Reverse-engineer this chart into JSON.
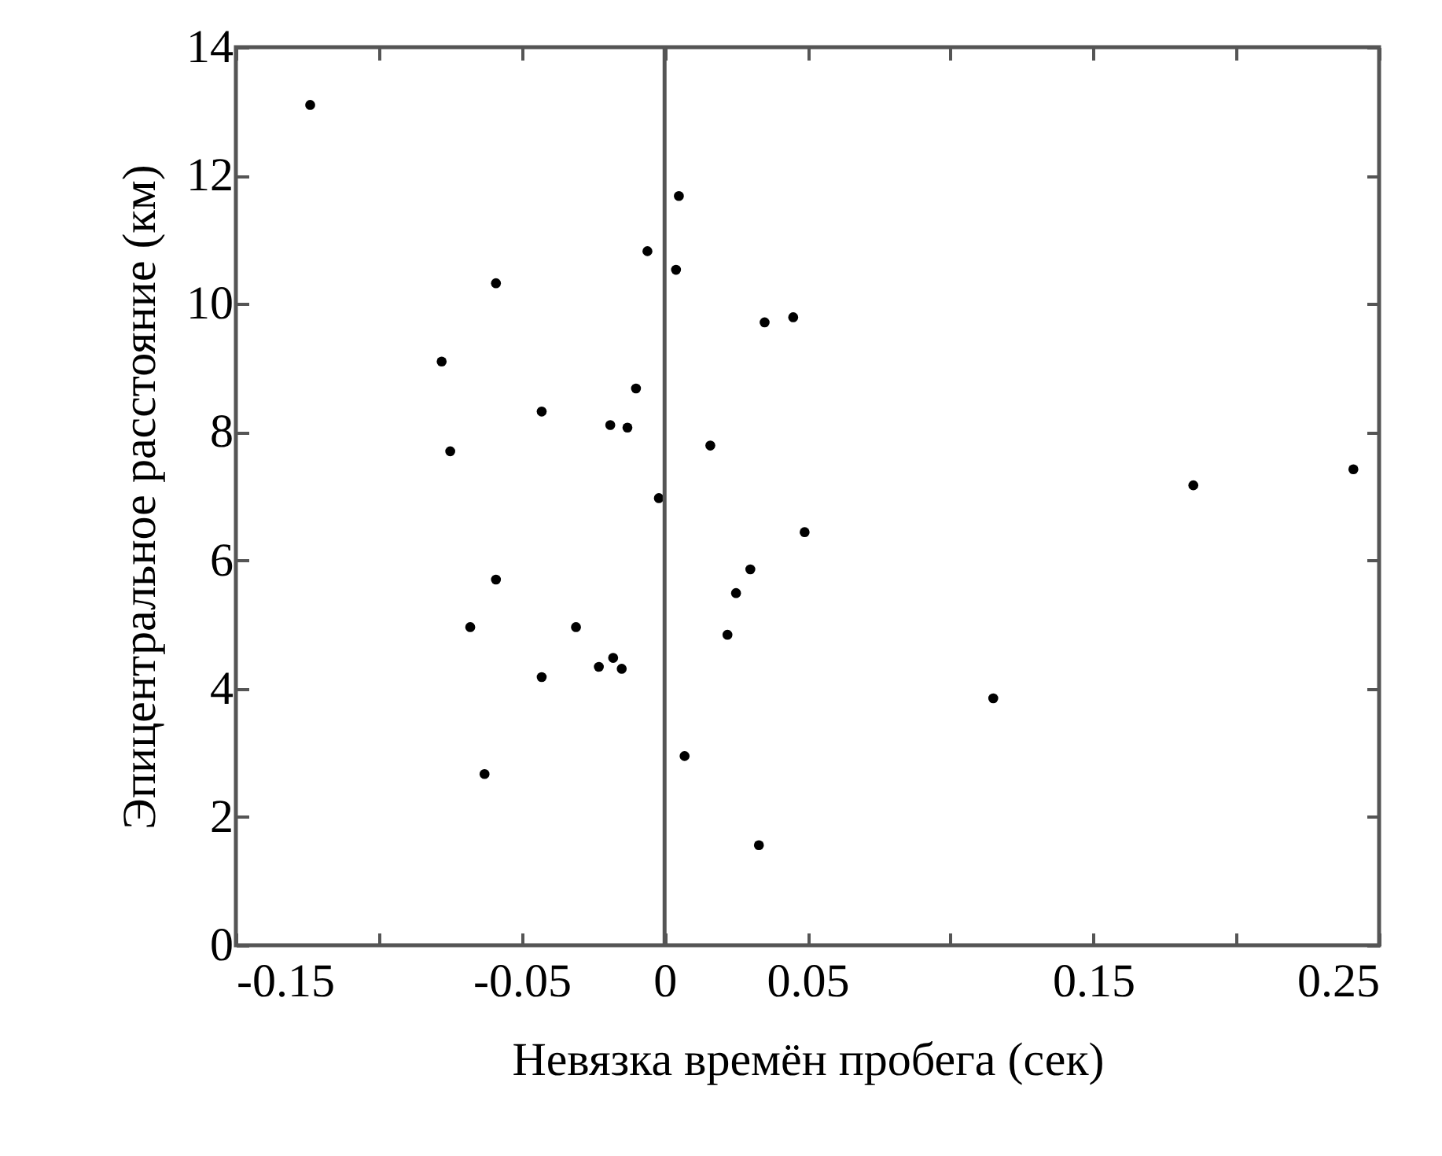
{
  "chart_data": {
    "type": "scatter",
    "xlabel": "Невязка времён пробега (сек)",
    "ylabel": "Эпицентральное расстояние (км)",
    "x": [
      -0.124,
      0.005,
      -0.006,
      0.004,
      -0.059,
      0.035,
      0.045,
      -0.078,
      -0.01,
      -0.043,
      -0.019,
      -0.013,
      -0.075,
      0.016,
      -0.002,
      0.049,
      -0.059,
      0.03,
      0.025,
      -0.068,
      -0.031,
      0.022,
      -0.018,
      -0.023,
      -0.015,
      -0.043,
      0.007,
      -0.063,
      0.033,
      0.115,
      0.185,
      0.241
    ],
    "series": [
      {
        "color": "#000000",
        "values": [
          13.1,
          11.68,
          10.82,
          10.53,
          10.32,
          9.71,
          9.79,
          9.1,
          8.68,
          8.32,
          8.11,
          8.07,
          7.7,
          7.79,
          6.97,
          6.44,
          5.7,
          5.86,
          5.49,
          4.96,
          4.96,
          4.84,
          4.48,
          4.34,
          4.31,
          4.18,
          2.95,
          2.67,
          1.56,
          3.85,
          7.17,
          7.42
        ]
      }
    ],
    "xlim": [
      -0.15,
      0.25
    ],
    "xticks": [
      -0.15,
      {
        "value": -0.1,
        "label": null
      },
      -0.05,
      0,
      0.05,
      {
        "value": 0.1,
        "label": null
      },
      0.15,
      {
        "value": 0.2,
        "label": null
      },
      0.25
    ],
    "ylim": [
      0,
      14
    ],
    "yticks": [
      0,
      2,
      4,
      6,
      8,
      10,
      12,
      14
    ],
    "ref_lines": [
      {
        "axis": "x",
        "value": 0,
        "color": "#555555"
      }
    ],
    "marker": "circle",
    "grid": false
  }
}
